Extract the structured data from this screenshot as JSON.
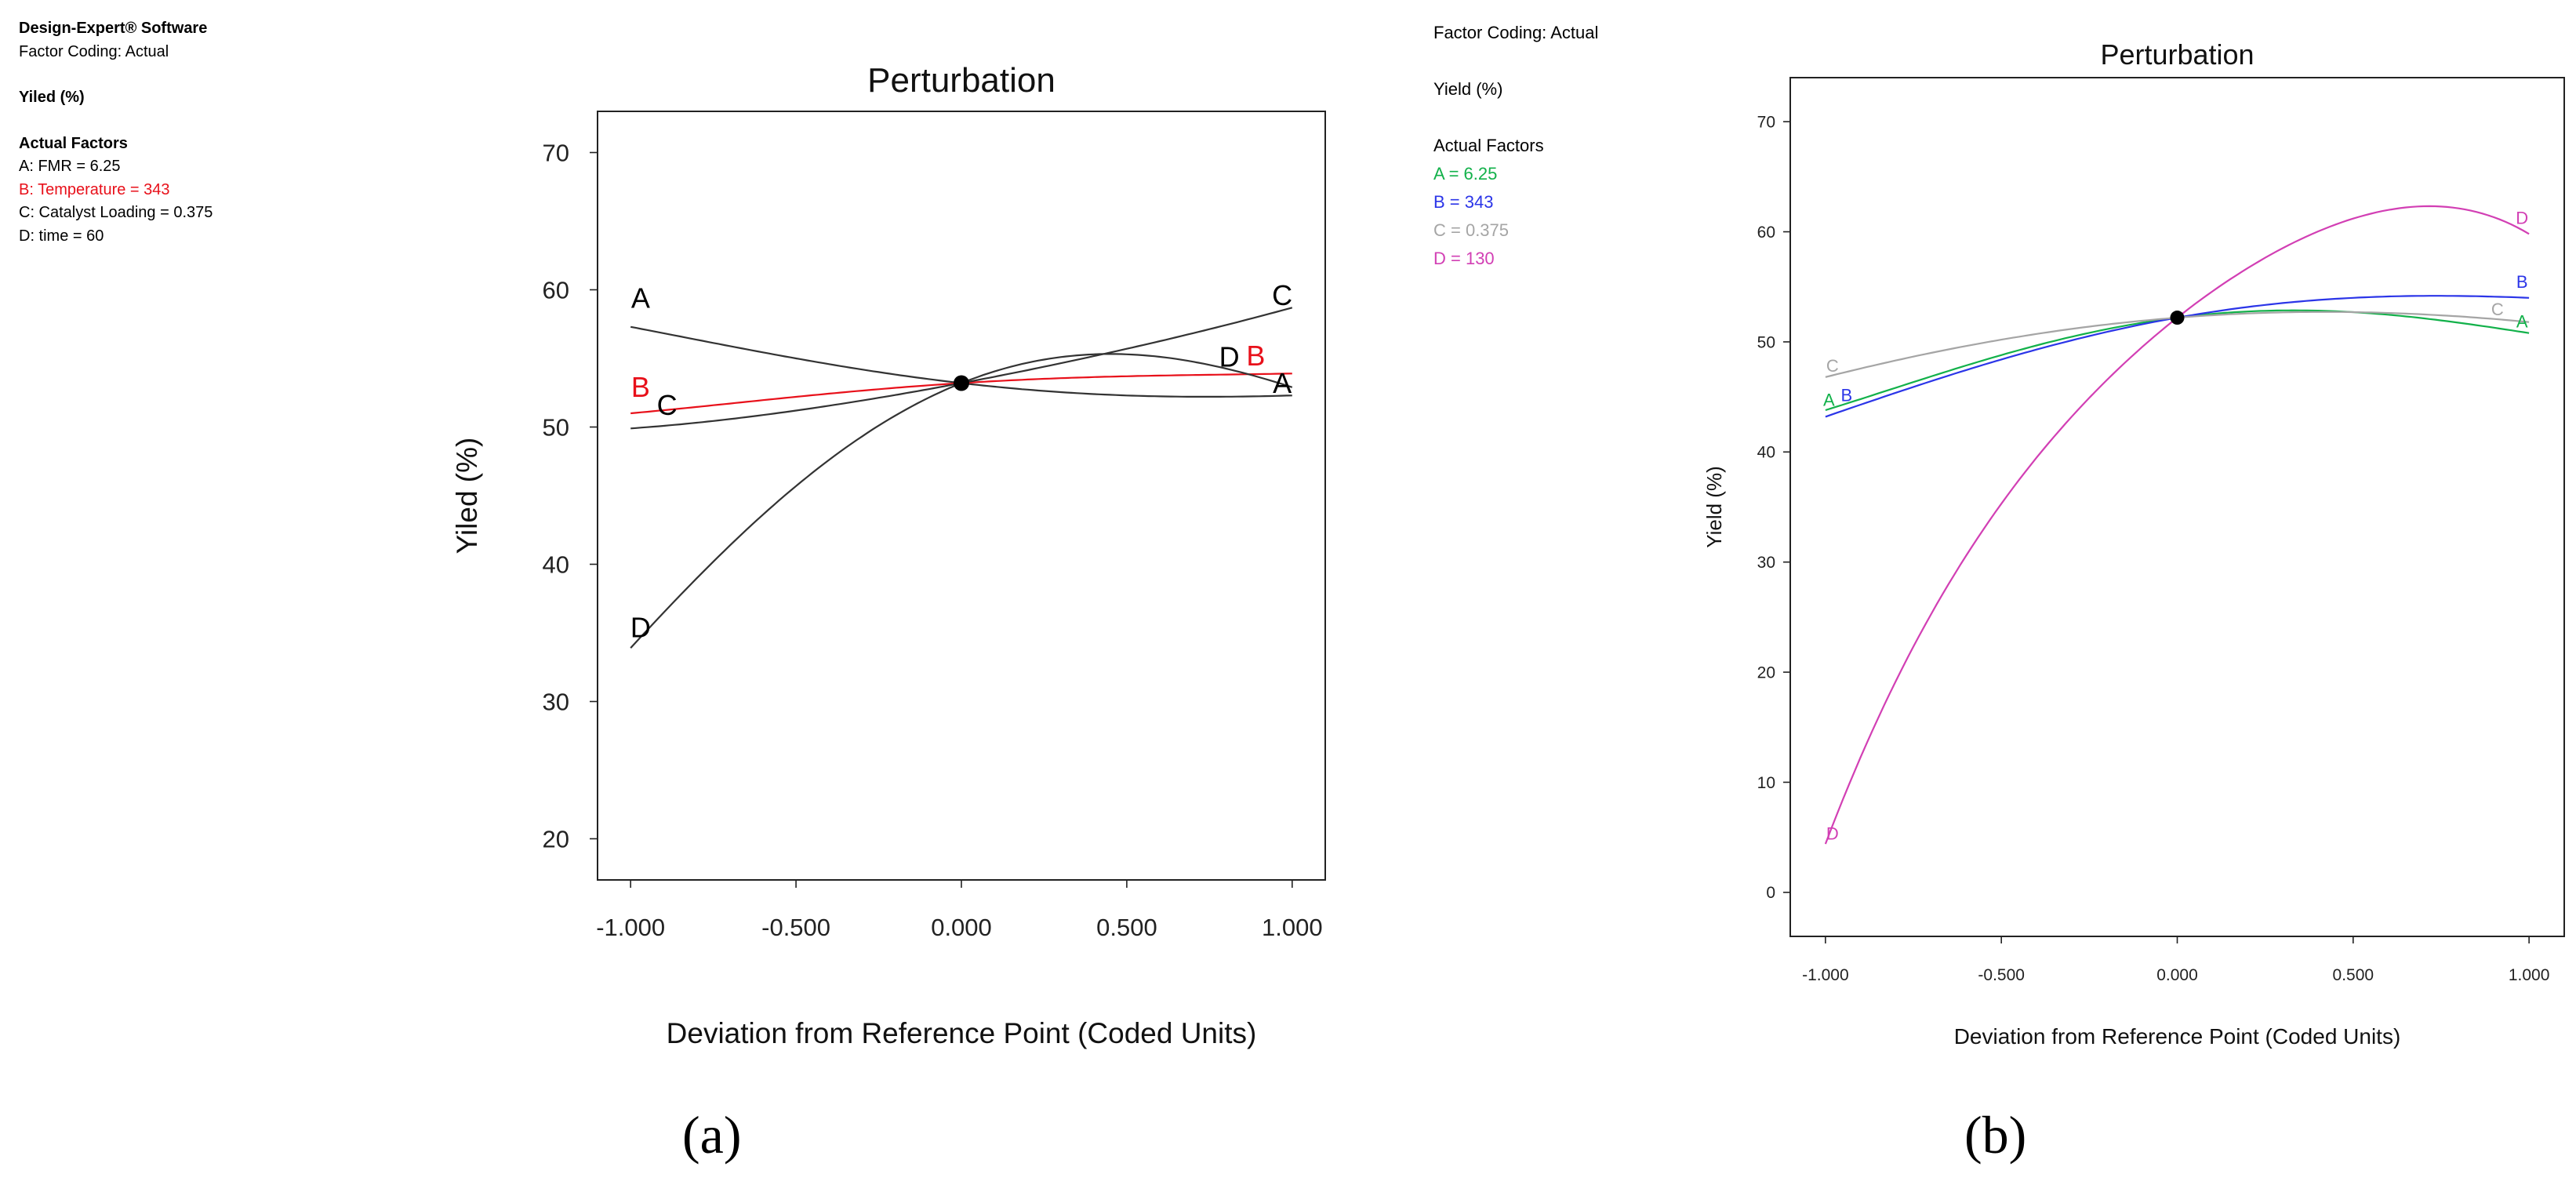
{
  "panel_a_info": {
    "software": "Design-Expert® Software",
    "coding": "Factor Coding: Actual",
    "response": "Yiled (%)",
    "factors_title": "Actual Factors",
    "factors": [
      {
        "text": "A: FMR = 6.25",
        "color": "#000000"
      },
      {
        "text": "B: Temperature = 343",
        "color": "#e8101a"
      },
      {
        "text": "C: Catalyst Loading = 0.375",
        "color": "#000000"
      },
      {
        "text": "D: time = 60",
        "color": "#000000"
      }
    ]
  },
  "panel_b_info": {
    "coding": "Factor Coding: Actual",
    "response": "Yield (%)",
    "factors_title": "Actual Factors",
    "factors": [
      {
        "text": "A = 6.25",
        "color": "#12b14a"
      },
      {
        "text": "B = 343",
        "color": "#2b35e8"
      },
      {
        "text": "C = 0.375",
        "color": "#a5a5a5"
      },
      {
        "text": "D = 130",
        "color": "#d23fb4"
      }
    ]
  },
  "panel_labels": {
    "a": "(a)",
    "b": "(b)"
  },
  "chart_data": [
    {
      "type": "line",
      "title": "Perturbation",
      "xlabel": "Deviation from Reference Point (Coded Units)",
      "ylabel": "Yiled (%)",
      "xlim": [
        -1.1,
        1.1
      ],
      "ylim": [
        17,
        73
      ],
      "xticks": [
        -1,
        -0.5,
        0,
        0.5,
        1
      ],
      "xtick_labels": [
        "-1.000",
        "-0.500",
        "0.000",
        "0.500",
        "1.000"
      ],
      "yticks": [
        20,
        30,
        40,
        50,
        60,
        70
      ],
      "ytick_labels": [
        "20",
        "30",
        "40",
        "50",
        "60",
        "70"
      ],
      "center_point": {
        "x": 0,
        "y": 53.2
      },
      "series": [
        {
          "name": "A",
          "color": "#333333",
          "x": [
            -1,
            -0.5,
            0,
            0.5,
            1
          ],
          "y": [
            57.3,
            55.0,
            53.2,
            52.3,
            52.3
          ]
        },
        {
          "name": "B",
          "color": "#e8101a",
          "x": [
            -1,
            -0.5,
            0,
            0.5,
            1
          ],
          "y": [
            51.0,
            52.2,
            53.2,
            53.7,
            53.9
          ]
        },
        {
          "name": "C",
          "color": "#333333",
          "x": [
            -1,
            -0.5,
            0,
            0.5,
            1
          ],
          "y": [
            49.9,
            51.2,
            53.2,
            55.7,
            58.7
          ]
        },
        {
          "name": "D",
          "color": "#333333",
          "x": [
            -1,
            -0.5,
            0,
            0.5,
            1
          ],
          "y": [
            33.9,
            45.7,
            53.2,
            55.3,
            52.9
          ]
        }
      ]
    },
    {
      "type": "line",
      "title": "Perturbation",
      "xlabel": "Deviation from Reference Point (Coded Units)",
      "ylabel": "Yield (%)",
      "xlim": [
        -1.1,
        1.1
      ],
      "ylim": [
        -4,
        74
      ],
      "xticks": [
        -1,
        -0.5,
        0,
        0.5,
        1
      ],
      "xtick_labels": [
        "-1.000",
        "-0.500",
        "0.000",
        "0.500",
        "1.000"
      ],
      "yticks": [
        0,
        10,
        20,
        30,
        40,
        50,
        60,
        70
      ],
      "ytick_labels": [
        "0",
        "10",
        "20",
        "30",
        "40",
        "50",
        "60",
        "70"
      ],
      "center_point": {
        "x": 0,
        "y": 52.2
      },
      "series": [
        {
          "name": "A",
          "color": "#12b14a",
          "x": [
            -1,
            -0.5,
            0,
            0.5,
            1
          ],
          "y": [
            43.8,
            48.8,
            52.2,
            52.7,
            50.8
          ]
        },
        {
          "name": "B",
          "color": "#2b35e8",
          "x": [
            -1,
            -0.5,
            0,
            0.5,
            1
          ],
          "y": [
            43.2,
            48.4,
            52.2,
            54.0,
            54.0
          ]
        },
        {
          "name": "C",
          "color": "#a5a5a5",
          "x": [
            -1,
            -0.5,
            0,
            0.5,
            1
          ],
          "y": [
            46.8,
            50.2,
            52.2,
            52.7,
            51.8
          ]
        },
        {
          "name": "D",
          "color": "#d23fb4",
          "x": [
            -1,
            -0.5,
            0,
            0.5,
            1
          ],
          "y": [
            4.4,
            35.3,
            52.2,
            61.2,
            59.8
          ]
        }
      ]
    }
  ]
}
